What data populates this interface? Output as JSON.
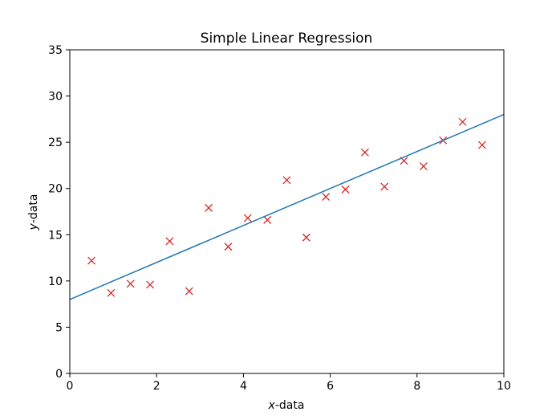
{
  "chart_data": {
    "type": "scatter",
    "title": "Simple Linear Regression",
    "xlabel": {
      "italic": "x",
      "rest": "-data"
    },
    "ylabel": {
      "italic": "y",
      "rest": "-data"
    },
    "xlim": [
      0,
      10
    ],
    "ylim": [
      0,
      35
    ],
    "xticks": [
      0,
      2,
      4,
      6,
      8,
      10
    ],
    "yticks": [
      0,
      5,
      10,
      15,
      20,
      25,
      30,
      35
    ],
    "grid": false,
    "series": [
      {
        "kind": "scatter",
        "marker": "x",
        "color": "#d62728",
        "x": [
          0.5,
          0.95,
          1.4,
          1.85,
          2.3,
          2.75,
          3.2,
          3.65,
          4.1,
          4.55,
          5.0,
          5.45,
          5.9,
          6.35,
          6.8,
          7.25,
          7.7,
          8.15,
          8.6,
          9.05,
          9.5
        ],
        "y": [
          12.2,
          8.7,
          9.7,
          9.6,
          14.3,
          8.9,
          17.9,
          13.7,
          16.8,
          16.6,
          20.9,
          14.7,
          19.1,
          19.9,
          23.9,
          20.2,
          23.0,
          22.4,
          25.2,
          27.2,
          24.7
        ]
      },
      {
        "kind": "line",
        "color": "#1f77b4",
        "x": [
          0,
          10
        ],
        "y": [
          8.0,
          28.0
        ]
      }
    ]
  }
}
